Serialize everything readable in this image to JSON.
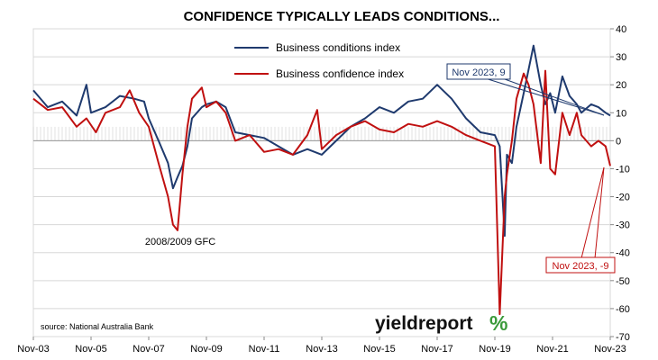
{
  "chart_data": {
    "type": "line",
    "title": "CONFIDENCE TYPICALLY LEADS CONDITIONS...",
    "x_tick_labels": [
      "Nov-03",
      "Nov-05",
      "Nov-07",
      "Nov-09",
      "Nov-11",
      "Nov-13",
      "Nov-15",
      "Nov-17",
      "Nov-19",
      "Nov-21",
      "Nov-23"
    ],
    "xlim": [
      2003.83,
      2023.83
    ],
    "ylim": [
      -70,
      40
    ],
    "y_ticks": [
      40,
      30,
      20,
      10,
      0,
      -10,
      -20,
      -30,
      -40,
      -50,
      -60,
      -70
    ],
    "y_axis_side": "right",
    "grid": "horizontal",
    "legend_position": "top-center",
    "series": [
      {
        "name": "Business conditions index",
        "color": "#1f3a6e",
        "x": [
          2003.83,
          2004.33,
          2004.83,
          2005.33,
          2005.67,
          2005.83,
          2006.33,
          2006.83,
          2007.33,
          2007.67,
          2007.83,
          2008.17,
          2008.5,
          2008.67,
          2008.83,
          2009.0,
          2009.17,
          2009.33,
          2009.67,
          2009.83,
          2010.17,
          2010.5,
          2010.83,
          2011.33,
          2011.83,
          2012.33,
          2012.83,
          2013.33,
          2013.83,
          2014.33,
          2014.83,
          2015.33,
          2015.83,
          2016.33,
          2016.83,
          2017.33,
          2017.83,
          2018.33,
          2018.83,
          2019.33,
          2019.83,
          2020.0,
          2020.17,
          2020.25,
          2020.42,
          2020.58,
          2020.83,
          2021.17,
          2021.42,
          2021.58,
          2021.75,
          2021.92,
          2022.17,
          2022.42,
          2022.67,
          2022.83,
          2023.17,
          2023.42,
          2023.67,
          2023.83
        ],
        "values": [
          18,
          12,
          14,
          9,
          20,
          10,
          12,
          16,
          15,
          14,
          8,
          0,
          -8,
          -17,
          -13,
          -9,
          -2,
          8,
          12,
          13,
          14,
          12,
          3,
          2,
          1,
          -2,
          -5,
          -3,
          -5,
          0,
          5,
          8,
          12,
          10,
          14,
          15,
          20,
          15,
          8,
          3,
          2,
          -2,
          -34,
          -5,
          -8,
          5,
          17,
          34,
          20,
          13,
          17,
          10,
          23,
          16,
          13,
          10,
          13,
          12,
          10,
          9
        ]
      },
      {
        "name": "Business confidence index",
        "color": "#c01010",
        "x": [
          2003.83,
          2004.33,
          2004.83,
          2005.33,
          2005.67,
          2006.0,
          2006.33,
          2006.83,
          2007.17,
          2007.5,
          2007.83,
          2008.17,
          2008.5,
          2008.67,
          2008.83,
          2009.0,
          2009.17,
          2009.33,
          2009.67,
          2009.83,
          2010.17,
          2010.5,
          2010.83,
          2011.33,
          2011.83,
          2012.33,
          2012.83,
          2013.33,
          2013.67,
          2013.83,
          2014.33,
          2014.83,
          2015.33,
          2015.83,
          2016.33,
          2016.83,
          2017.33,
          2017.83,
          2018.33,
          2018.83,
          2019.33,
          2019.83,
          2020.0,
          2020.17,
          2020.25,
          2020.42,
          2020.58,
          2020.83,
          2021.0,
          2021.17,
          2021.42,
          2021.58,
          2021.75,
          2021.92,
          2022.17,
          2022.42,
          2022.67,
          2022.83,
          2023.17,
          2023.42,
          2023.67,
          2023.83
        ],
        "values": [
          15,
          11,
          12,
          5,
          8,
          3,
          10,
          12,
          18,
          10,
          5,
          -8,
          -20,
          -30,
          -32,
          -12,
          5,
          15,
          19,
          12,
          14,
          10,
          0,
          2,
          -4,
          -3,
          -5,
          2,
          11,
          -3,
          2,
          5,
          7,
          4,
          3,
          6,
          5,
          7,
          5,
          2,
          0,
          -2,
          -62,
          -20,
          -12,
          0,
          15,
          24,
          20,
          13,
          -8,
          25,
          -10,
          -12,
          10,
          2,
          10,
          2,
          -2,
          0,
          -2,
          -9
        ]
      }
    ],
    "annotations": [
      {
        "text": "2008/2009 GFC"
      },
      {
        "text": "Nov 2023, 9",
        "series": "Business conditions index"
      },
      {
        "text": "Nov 2023, -9",
        "series": "Business confidence index"
      }
    ]
  },
  "source_text": "source: National Australia Bank",
  "logo": {
    "word": "yieldreport",
    "pct": "%"
  }
}
